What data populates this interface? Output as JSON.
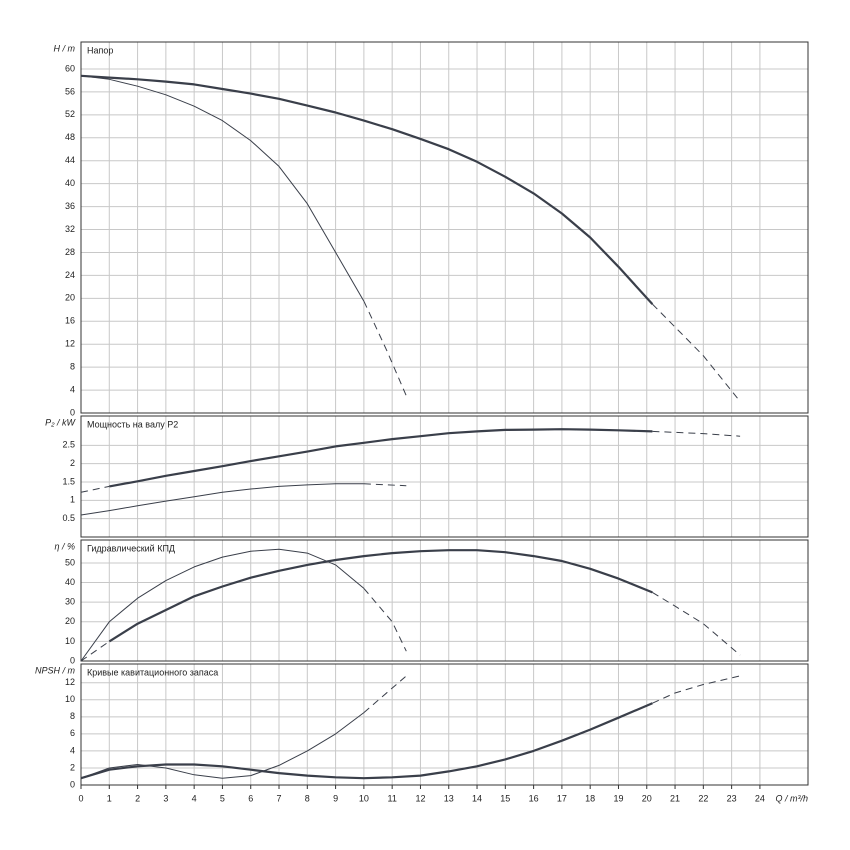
{
  "chart_data": [
    {
      "type": "line",
      "ylabel": "H / m",
      "annotation": "Напор",
      "xlim": [
        0,
        25.7
      ],
      "ylim": [
        0,
        64.7
      ],
      "yticks": [
        0,
        4,
        8,
        12,
        16,
        20,
        24,
        28,
        32,
        36,
        40,
        44,
        48,
        52,
        56,
        60
      ],
      "grid": true,
      "series": [
        {
          "color": "#3a3f4a",
          "width": 2.2,
          "dashed": false,
          "x": [
            0,
            1,
            2,
            3,
            4,
            5,
            6,
            7,
            8,
            9,
            10,
            11,
            12,
            13,
            14,
            15,
            16,
            17,
            18,
            19,
            20.2
          ],
          "values": [
            58.8,
            58.5,
            58.2,
            57.8,
            57.3,
            56.5,
            55.7,
            54.8,
            53.6,
            52.4,
            51,
            49.5,
            47.8,
            46,
            43.8,
            41.2,
            38.3,
            34.8,
            30.6,
            25.5,
            19
          ]
        },
        {
          "color": "#3a3f4a",
          "width": 1,
          "dashed": true,
          "x": [
            20.2,
            21,
            22,
            23.3
          ],
          "values": [
            19,
            15,
            10,
            2
          ]
        },
        {
          "color": "#3a3f4a",
          "width": 1,
          "dashed": false,
          "x": [
            0,
            1,
            2,
            3,
            4,
            5,
            6,
            7,
            8,
            9,
            10
          ],
          "values": [
            58.8,
            58.2,
            57,
            55.5,
            53.5,
            51,
            47.5,
            43,
            36.5,
            28,
            19.5
          ]
        },
        {
          "color": "#3a3f4a",
          "width": 1,
          "dashed": true,
          "x": [
            10,
            10.8,
            11.5
          ],
          "values": [
            19.5,
            11,
            3
          ]
        }
      ]
    },
    {
      "type": "line",
      "ylabel": "P₂ / kW",
      "annotation": "Мощность на валу P2",
      "xlim": [
        0,
        25.7
      ],
      "ylim": [
        0,
        3.3
      ],
      "yticks": [
        0.5,
        1,
        1.5,
        2,
        2.5
      ],
      "grid": true,
      "series": [
        {
          "color": "#3a3f4a",
          "width": 1,
          "dashed": true,
          "x": [
            0,
            1
          ],
          "values": [
            1.22,
            1.38
          ]
        },
        {
          "color": "#3a3f4a",
          "width": 2.2,
          "dashed": false,
          "x": [
            1,
            2,
            3,
            4,
            5,
            6,
            7,
            8,
            9,
            10,
            11,
            12,
            13,
            14,
            15,
            16,
            17,
            18,
            19,
            20.2
          ],
          "values": [
            1.38,
            1.52,
            1.67,
            1.8,
            1.93,
            2.07,
            2.2,
            2.33,
            2.47,
            2.57,
            2.67,
            2.75,
            2.83,
            2.88,
            2.92,
            2.93,
            2.94,
            2.93,
            2.91,
            2.88
          ]
        },
        {
          "color": "#3a3f4a",
          "width": 1,
          "dashed": true,
          "x": [
            20.2,
            22,
            23.3
          ],
          "values": [
            2.88,
            2.82,
            2.75
          ]
        },
        {
          "color": "#3a3f4a",
          "width": 1,
          "dashed": false,
          "x": [
            0,
            1,
            2,
            3,
            4,
            5,
            6,
            7,
            8,
            9,
            10
          ],
          "values": [
            0.6,
            0.72,
            0.85,
            0.98,
            1.1,
            1.22,
            1.31,
            1.38,
            1.42,
            1.45,
            1.45
          ]
        },
        {
          "color": "#3a3f4a",
          "width": 1,
          "dashed": true,
          "x": [
            10,
            11.5
          ],
          "values": [
            1.45,
            1.4
          ]
        }
      ]
    },
    {
      "type": "line",
      "ylabel": "η / %",
      "annotation": "Гидравлический КПД",
      "xlim": [
        0,
        25.7
      ],
      "ylim": [
        0,
        61.7
      ],
      "yticks": [
        0,
        10,
        20,
        30,
        40,
        50
      ],
      "grid": true,
      "series": [
        {
          "color": "#3a3f4a",
          "width": 1,
          "dashed": true,
          "x": [
            0,
            1
          ],
          "values": [
            0,
            10
          ]
        },
        {
          "color": "#3a3f4a",
          "width": 2.2,
          "dashed": false,
          "x": [
            1,
            2,
            3,
            4,
            5,
            6,
            7,
            8,
            9,
            10,
            11,
            12,
            13,
            14,
            15,
            16,
            17,
            18,
            19,
            20.2
          ],
          "values": [
            10,
            19,
            26,
            33,
            38,
            42.5,
            46,
            49,
            51.5,
            53.5,
            55,
            56,
            56.5,
            56.5,
            55.5,
            53.5,
            51,
            47,
            42,
            35
          ]
        },
        {
          "color": "#3a3f4a",
          "width": 1,
          "dashed": true,
          "x": [
            20.2,
            21,
            22,
            23.3
          ],
          "values": [
            35,
            28,
            19,
            3
          ]
        },
        {
          "color": "#3a3f4a",
          "width": 1,
          "dashed": false,
          "x": [
            0,
            1,
            2,
            3,
            4,
            5,
            6,
            7,
            8,
            9,
            10
          ],
          "values": [
            0,
            20,
            32,
            41,
            48,
            53,
            56,
            57,
            55,
            49,
            37
          ]
        },
        {
          "color": "#3a3f4a",
          "width": 1,
          "dashed": true,
          "x": [
            10,
            11,
            11.5
          ],
          "values": [
            37,
            20,
            5
          ]
        }
      ]
    },
    {
      "type": "line",
      "ylabel": "NPSH / m",
      "annotation": "Кривые кавитационного запаса",
      "xlabel": "Q / m³/h",
      "xlim": [
        0,
        25.7
      ],
      "xticks": [
        0,
        1,
        2,
        3,
        4,
        5,
        6,
        7,
        8,
        9,
        10,
        11,
        12,
        13,
        14,
        15,
        16,
        17,
        18,
        19,
        20,
        21,
        22,
        23,
        24
      ],
      "ylim": [
        0,
        14.2
      ],
      "yticks": [
        0,
        2,
        4,
        6,
        8,
        10,
        12
      ],
      "grid": true,
      "series": [
        {
          "color": "#3a3f4a",
          "width": 2.2,
          "dashed": false,
          "x": [
            0,
            1,
            2,
            3,
            4,
            5,
            6,
            7,
            8,
            9,
            10,
            11,
            12,
            13,
            14,
            15,
            16,
            17,
            18,
            19,
            20.2
          ],
          "values": [
            0.8,
            1.8,
            2.2,
            2.4,
            2.4,
            2.2,
            1.8,
            1.4,
            1.1,
            0.9,
            0.8,
            0.9,
            1.1,
            1.6,
            2.2,
            3,
            4,
            5.2,
            6.5,
            7.9,
            9.6
          ]
        },
        {
          "color": "#3a3f4a",
          "width": 1,
          "dashed": true,
          "x": [
            20.2,
            21,
            22,
            23.3
          ],
          "values": [
            9.6,
            10.8,
            11.8,
            12.8
          ]
        },
        {
          "color": "#3a3f4a",
          "width": 1,
          "dashed": false,
          "x": [
            0,
            1,
            2,
            3,
            4,
            5,
            6,
            7,
            8,
            9,
            10
          ],
          "values": [
            0.8,
            2,
            2.4,
            2,
            1.2,
            0.8,
            1.1,
            2.3,
            4,
            6,
            8.5
          ]
        },
        {
          "color": "#3a3f4a",
          "width": 1,
          "dashed": true,
          "x": [
            10,
            11.5
          ],
          "values": [
            8.5,
            12.8
          ]
        }
      ]
    }
  ]
}
